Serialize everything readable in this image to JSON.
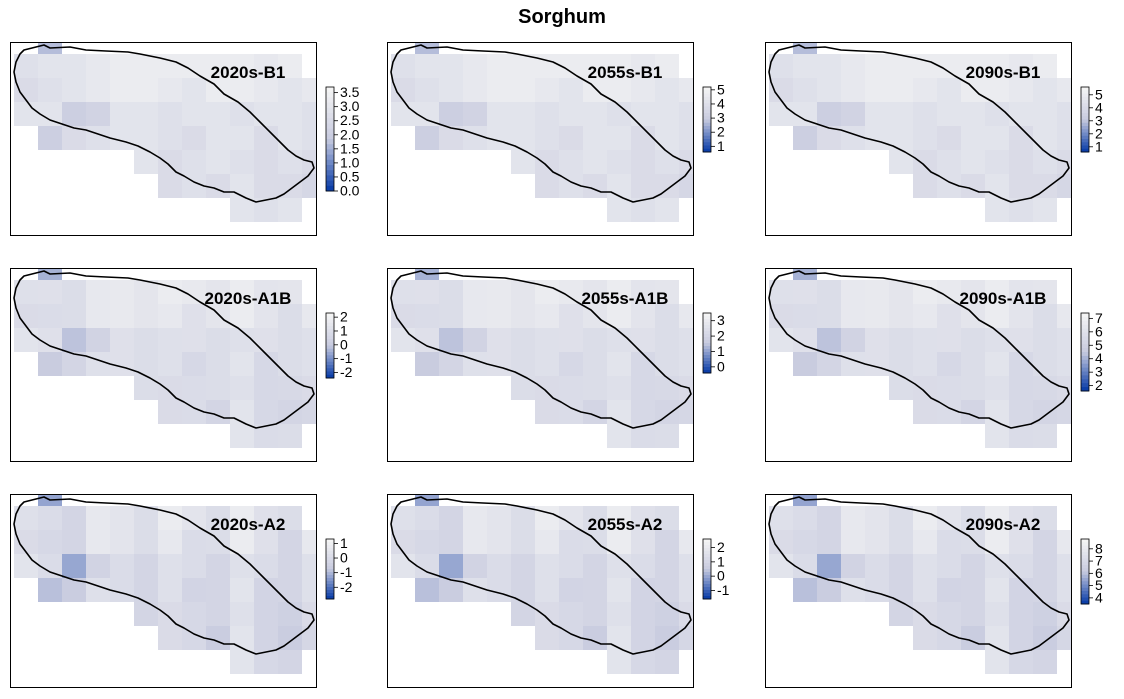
{
  "title": "Sorghum",
  "colors": {
    "low": "#0d3fa8",
    "mid": "#c8cbdf",
    "high": "#f4f4f4",
    "outline": "#000000"
  },
  "panels": [
    {
      "id": "2020s-B1",
      "label": "2020s-B1",
      "ticks": [
        "3.5",
        "3.0",
        "2.5",
        "2.0",
        "1.5",
        "1.0",
        "0.5",
        "0.0"
      ],
      "vmin": 0.0,
      "vmax": 3.7
    },
    {
      "id": "2055s-B1",
      "label": "2055s-B1",
      "ticks": [
        "5",
        "4",
        "3",
        "2",
        "1"
      ],
      "vmin": 0.6,
      "vmax": 5.2
    },
    {
      "id": "2090s-B1",
      "label": "2090s-B1",
      "ticks": [
        "5",
        "4",
        "3",
        "2",
        "1"
      ],
      "vmin": 0.6,
      "vmax": 5.6
    },
    {
      "id": "2020s-A1B",
      "label": "2020s-A1B",
      "ticks": [
        "2",
        "1",
        "0",
        "-1",
        "-2"
      ],
      "vmin": -2.4,
      "vmax": 2.3
    },
    {
      "id": "2055s-A1B",
      "label": "2055s-A1B",
      "ticks": [
        "3",
        "2",
        "1",
        "0"
      ],
      "vmin": -0.4,
      "vmax": 3.5
    },
    {
      "id": "2090s-A1B",
      "label": "2090s-A1B",
      "ticks": [
        "7",
        "6",
        "5",
        "4",
        "3",
        "2"
      ],
      "vmin": 1.6,
      "vmax": 7.4
    },
    {
      "id": "2020s-A2",
      "label": "2020s-A2",
      "ticks": [
        "1",
        "0",
        "-1",
        "-2"
      ],
      "vmin": -2.8,
      "vmax": 1.3
    },
    {
      "id": "2055s-A2",
      "label": "2055s-A2",
      "ticks": [
        "2",
        "1",
        "0",
        "-1"
      ],
      "vmin": -1.6,
      "vmax": 2.6
    },
    {
      "id": "2090s-A2",
      "label": "2090s-A2",
      "ticks": [
        "8",
        "7",
        "6",
        "5",
        "4"
      ],
      "vmin": 3.5,
      "vmax": 8.8
    }
  ]
}
